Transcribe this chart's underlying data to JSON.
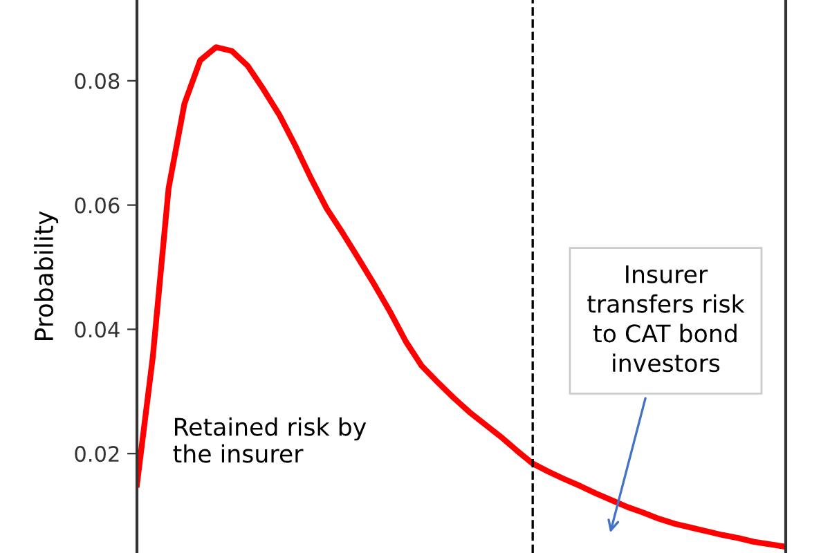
{
  "chart_data": {
    "type": "line",
    "ylabel": "Probability",
    "categories": [
      null,
      null,
      null,
      null,
      null,
      null,
      null,
      null,
      null,
      null,
      null,
      null,
      null,
      null,
      null,
      null,
      null,
      null,
      null,
      null,
      null,
      null,
      null,
      null,
      null,
      null,
      null,
      null,
      null,
      null,
      null,
      null,
      null,
      null,
      null,
      null,
      null,
      null,
      null,
      null,
      null,
      null
    ],
    "series": [
      {
        "color": "#ff0000",
        "values": [
          0.015,
          0.0355,
          0.0627,
          0.0763,
          0.0833,
          0.0854,
          0.0848,
          0.0824,
          0.0786,
          0.0745,
          0.0696,
          0.0643,
          0.0594,
          0.0555,
          0.0514,
          0.0472,
          0.0428,
          0.038,
          0.0341,
          0.0315,
          0.029,
          0.0267,
          0.0247,
          0.0227,
          0.0205,
          0.0184,
          0.0171,
          0.0159,
          0.0148,
          0.0136,
          0.0125,
          0.0114,
          0.0105,
          0.0095,
          0.0087,
          0.0081,
          0.0075,
          0.0069,
          0.0064,
          0.0058,
          0.0054,
          0.005
        ]
      }
    ],
    "ylim": [
      0.004,
      0.093
    ],
    "yticks": [
      0.02,
      0.04,
      0.06,
      0.08
    ],
    "tick_labels": "y",
    "annotations": [
      "Retained risk by\nthe insurer",
      "Insurer\ntransfers risk\nto CAT bond\ninvestors"
    ],
    "marker": "none",
    "line_style": "solid"
  }
}
